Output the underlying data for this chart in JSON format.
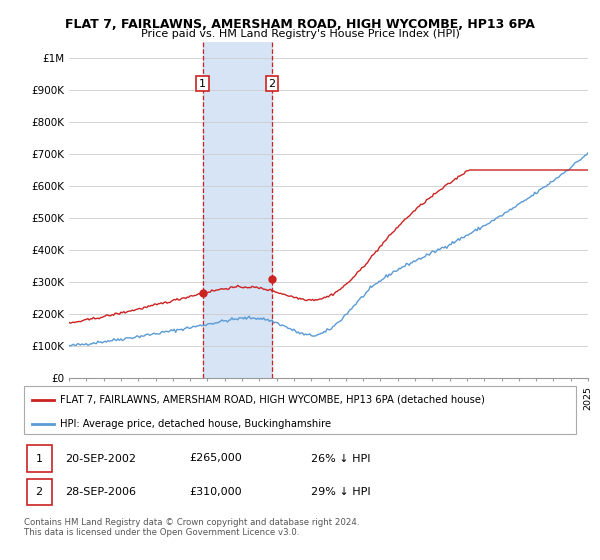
{
  "title": "FLAT 7, FAIRLAWNS, AMERSHAM ROAD, HIGH WYCOMBE, HP13 6PA",
  "subtitle": "Price paid vs. HM Land Registry's House Price Index (HPI)",
  "red_label": "FLAT 7, FAIRLAWNS, AMERSHAM ROAD, HIGH WYCOMBE, HP13 6PA (detached house)",
  "blue_label": "HPI: Average price, detached house, Buckinghamshire",
  "transaction1_date": "20-SEP-2002",
  "transaction1_price": "£265,000",
  "transaction1_hpi": "26% ↓ HPI",
  "transaction2_date": "28-SEP-2006",
  "transaction2_price": "£310,000",
  "transaction2_hpi": "29% ↓ HPI",
  "footer": "Contains HM Land Registry data © Crown copyright and database right 2024.\nThis data is licensed under the Open Government Licence v3.0.",
  "ylim": [
    0,
    1050000
  ],
  "yticks": [
    0,
    100000,
    200000,
    300000,
    400000,
    500000,
    600000,
    700000,
    800000,
    900000,
    1000000
  ],
  "ytick_labels": [
    "£0",
    "£100K",
    "£200K",
    "£300K",
    "£400K",
    "£500K",
    "£600K",
    "£700K",
    "£800K",
    "£900K",
    "£1M"
  ],
  "x_start_year": 1995,
  "x_end_year": 2025,
  "transaction1_year": 2002.72,
  "transaction2_year": 2006.74,
  "transaction1_price_val": 265000,
  "transaction2_price_val": 310000,
  "red_color": "#cc2222",
  "blue_color": "#5b9bd5",
  "shade_color": "#d6e4f5",
  "grid_color": "#cccccc"
}
